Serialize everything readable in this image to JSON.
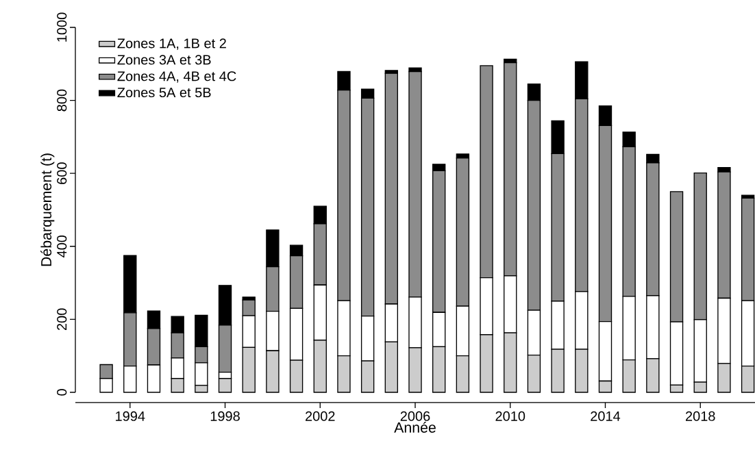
{
  "chart_data": {
    "type": "bar",
    "stacked": true,
    "xlabel": "Année",
    "ylabel": "Débarquement (t)",
    "x": [
      1993,
      1994,
      1995,
      1996,
      1997,
      1998,
      1999,
      2000,
      2001,
      2002,
      2003,
      2004,
      2005,
      2006,
      2007,
      2008,
      2009,
      2010,
      2011,
      2012,
      2013,
      2014,
      2015,
      2016,
      2017,
      2018,
      2019,
      2020
    ],
    "series": [
      {
        "name": "Zones 1A, 1B et 2",
        "color": "#cccccc",
        "values": [
          0,
          0,
          0,
          38,
          19,
          38,
          123,
          114,
          88,
          143,
          100,
          86,
          138,
          122,
          125,
          100,
          158,
          163,
          102,
          118,
          118,
          31,
          89,
          92,
          20,
          28,
          79,
          72
        ]
      },
      {
        "name": "Zones 3A et 3B",
        "color": "#ffffff",
        "values": [
          38,
          72,
          75,
          56,
          62,
          17,
          87,
          108,
          142,
          151,
          151,
          123,
          104,
          139,
          94,
          136,
          156,
          156,
          123,
          132,
          158,
          163,
          174,
          173,
          173,
          171,
          179,
          179
        ]
      },
      {
        "name": "Zones 4A, 4B et 4C",
        "color": "#8c8c8c",
        "values": [
          38,
          146,
          100,
          69,
          44,
          129,
          43,
          122,
          144,
          168,
          577,
          597,
          632,
          618,
          388,
          406,
          581,
          584,
          575,
          404,
          528,
          537,
          410,
          364,
          357,
          402,
          346,
          281
        ]
      },
      {
        "name": "Zones 5A et 5B",
        "color": "#000000",
        "values": [
          0,
          157,
          48,
          45,
          86,
          109,
          8,
          101,
          29,
          48,
          51,
          25,
          8,
          10,
          18,
          11,
          0,
          10,
          45,
          90,
          102,
          54,
          40,
          23,
          0,
          0,
          12,
          8
        ]
      }
    ],
    "xlim": [
      1991.7,
      2020.3
    ],
    "xticks": [
      1994,
      1998,
      2002,
      2006,
      2010,
      2014,
      2018
    ],
    "ylim": [
      0,
      1000
    ],
    "yticks": [
      0,
      200,
      400,
      600,
      800,
      1000
    ],
    "legend": "top left"
  }
}
